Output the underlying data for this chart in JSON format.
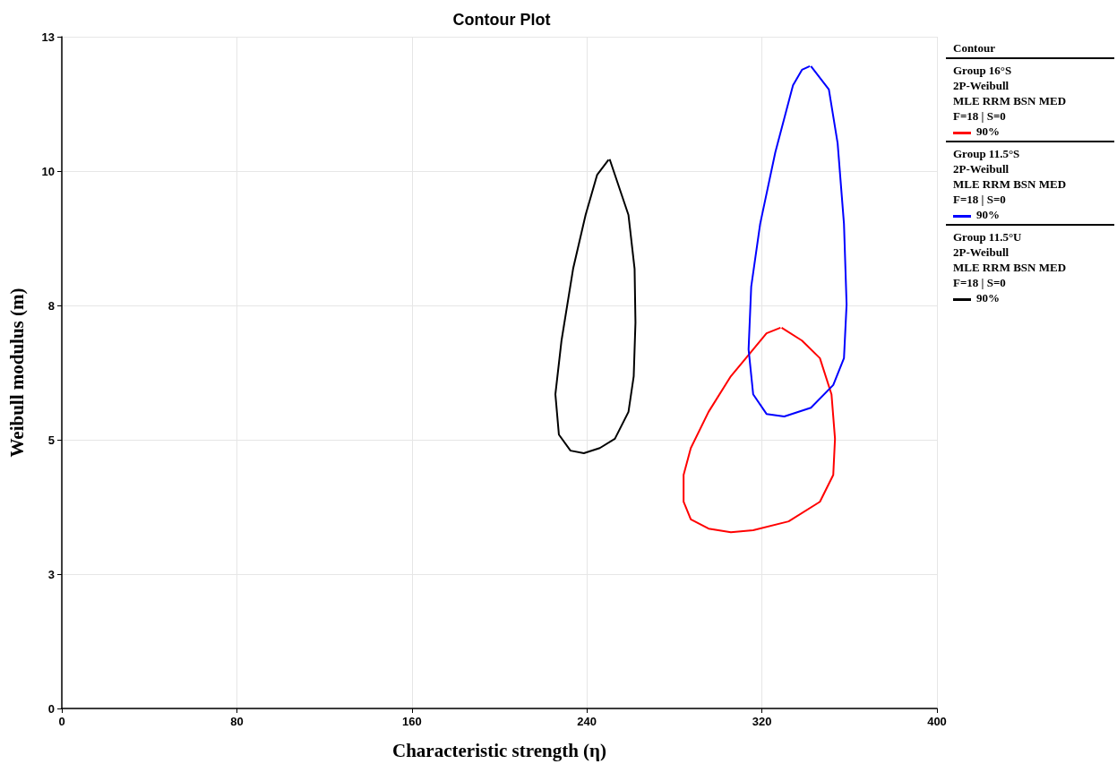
{
  "chart_data": {
    "type": "line",
    "title": "Contour Plot",
    "xlabel": "Characteristic strength (η)",
    "ylabel": "Weibull modulus (m)",
    "legend_title": "Contour",
    "annotations": [
      "Group 16°S\n2P-Weibull\nMLE RRM BSN MED\nF=18 | S=0",
      "Group 11.5°S\n2P-Weibull\nMLE RRM BSN MED\nF=18 | S=0",
      "Group 11.5°U\n2P-Weibull\nMLE RRM BSN MED\nF=18 | S=0"
    ],
    "xlim": [
      0,
      400
    ],
    "xticks": [
      0,
      80,
      160,
      240,
      320,
      400
    ],
    "ylim": [
      0,
      13
    ],
    "yticks": [
      0,
      {
        "value": 2.6,
        "label": "3"
      },
      {
        "value": 5.2,
        "label": "5"
      },
      {
        "value": 7.8,
        "label": "8"
      },
      {
        "value": 10.4,
        "label": "10"
      },
      13
    ],
    "grid": true,
    "legend": "right",
    "marker": "none",
    "line_style": "solid",
    "series": [
      {
        "name": "90%",
        "color": "#ff0000",
        "x": [
          329,
          338.3,
          346.5,
          351.8,
          353.4,
          352.6,
          346.5,
          332.2,
          316,
          305.8,
          295.6,
          287.5,
          284.2,
          284.2,
          287.5,
          295.6,
          305.8,
          316,
          322.1,
          328.5
        ],
        "values": [
          7.37,
          7.12,
          6.78,
          6.08,
          5.22,
          4.52,
          4.0,
          3.62,
          3.45,
          3.41,
          3.48,
          3.66,
          4.0,
          4.52,
          5.04,
          5.74,
          6.43,
          6.95,
          7.26,
          7.37
        ]
      },
      {
        "name": "90%",
        "color": "#0000ff",
        "x": [
          342.4,
          350.6,
          354.6,
          357.5,
          358.7,
          357.5,
          352.6,
          342.4,
          330.2,
          322.1,
          316,
          313.9,
          315.1,
          319.2,
          326.1,
          334.2,
          338.3,
          341.9
        ],
        "values": [
          12.43,
          11.98,
          10.94,
          9.38,
          7.82,
          6.78,
          6.26,
          5.82,
          5.65,
          5.7,
          6.08,
          6.95,
          8.16,
          9.38,
          10.76,
          12.06,
          12.36,
          12.43
        ]
      },
      {
        "name": "90%",
        "color": "#000000",
        "x": [
          250.4,
          259,
          261.8,
          262.2,
          261.4,
          259,
          252.8,
          245.9,
          238.6,
          232.5,
          227.2,
          225.6,
          228.4,
          233.7,
          239.4,
          244.7,
          249.9
        ],
        "values": [
          10.63,
          9.55,
          8.51,
          7.47,
          6.43,
          5.74,
          5.22,
          5.04,
          4.94,
          4.99,
          5.3,
          6.08,
          7.12,
          8.51,
          9.55,
          10.33,
          10.62
        ]
      }
    ]
  }
}
